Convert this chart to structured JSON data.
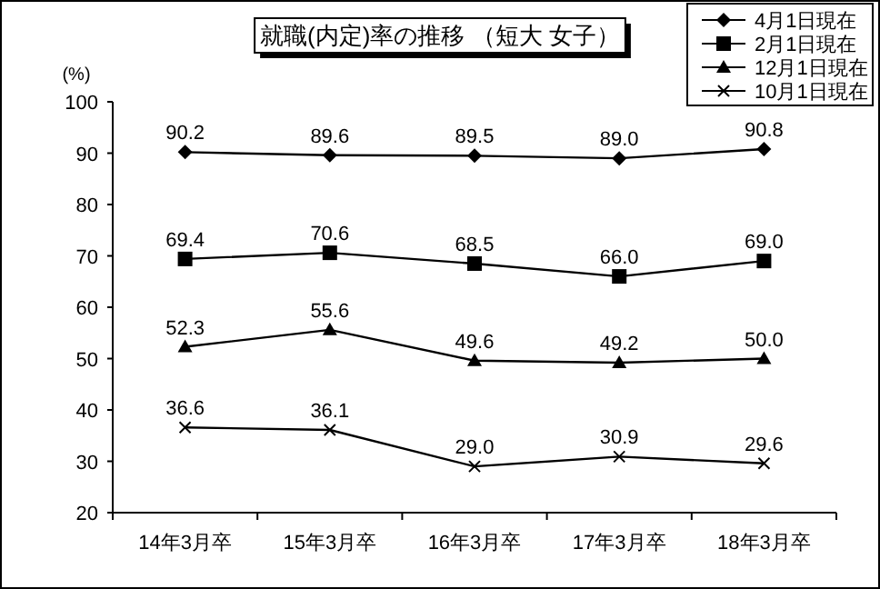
{
  "chart_data": {
    "type": "line",
    "title": "就職(内定)率の推移 （短大 女子）",
    "ylabel": "(%)",
    "categories": [
      "14年3月卒",
      "15年3月卒",
      "16年3月卒",
      "17年3月卒",
      "18年3月卒"
    ],
    "series": [
      {
        "name": "4月1日現在",
        "color": "#000000",
        "marker": "diamond",
        "values": [
          90.2,
          89.6,
          89.5,
          89.0,
          90.8
        ],
        "value_labels": [
          "90.2",
          "89.6",
          "89.5",
          "89.0",
          "90.8"
        ]
      },
      {
        "name": "2月1日現在",
        "color": "#000000",
        "marker": "square",
        "values": [
          69.4,
          70.6,
          68.5,
          66.0,
          69.0
        ],
        "value_labels": [
          "69.4",
          "70.6",
          "68.5",
          "66.0",
          "69.0"
        ]
      },
      {
        "name": "12月1日現在",
        "color": "#000000",
        "marker": "triangle",
        "values": [
          52.3,
          55.6,
          49.6,
          49.2,
          50.0
        ],
        "value_labels": [
          "52.3",
          "55.6",
          "49.6",
          "49.2",
          "50.0"
        ]
      },
      {
        "name": "10月1日現在",
        "color": "#000000",
        "marker": "cross",
        "values": [
          36.6,
          36.1,
          29.0,
          30.9,
          29.6
        ],
        "value_labels": [
          "36.6",
          "36.1",
          "29.0",
          "30.9",
          "29.6"
        ]
      }
    ],
    "ylim": [
      20,
      100
    ],
    "yticks": [
      20,
      30,
      40,
      50,
      60,
      70,
      80,
      90,
      100
    ],
    "legend": "top right",
    "line_style": "solid"
  }
}
